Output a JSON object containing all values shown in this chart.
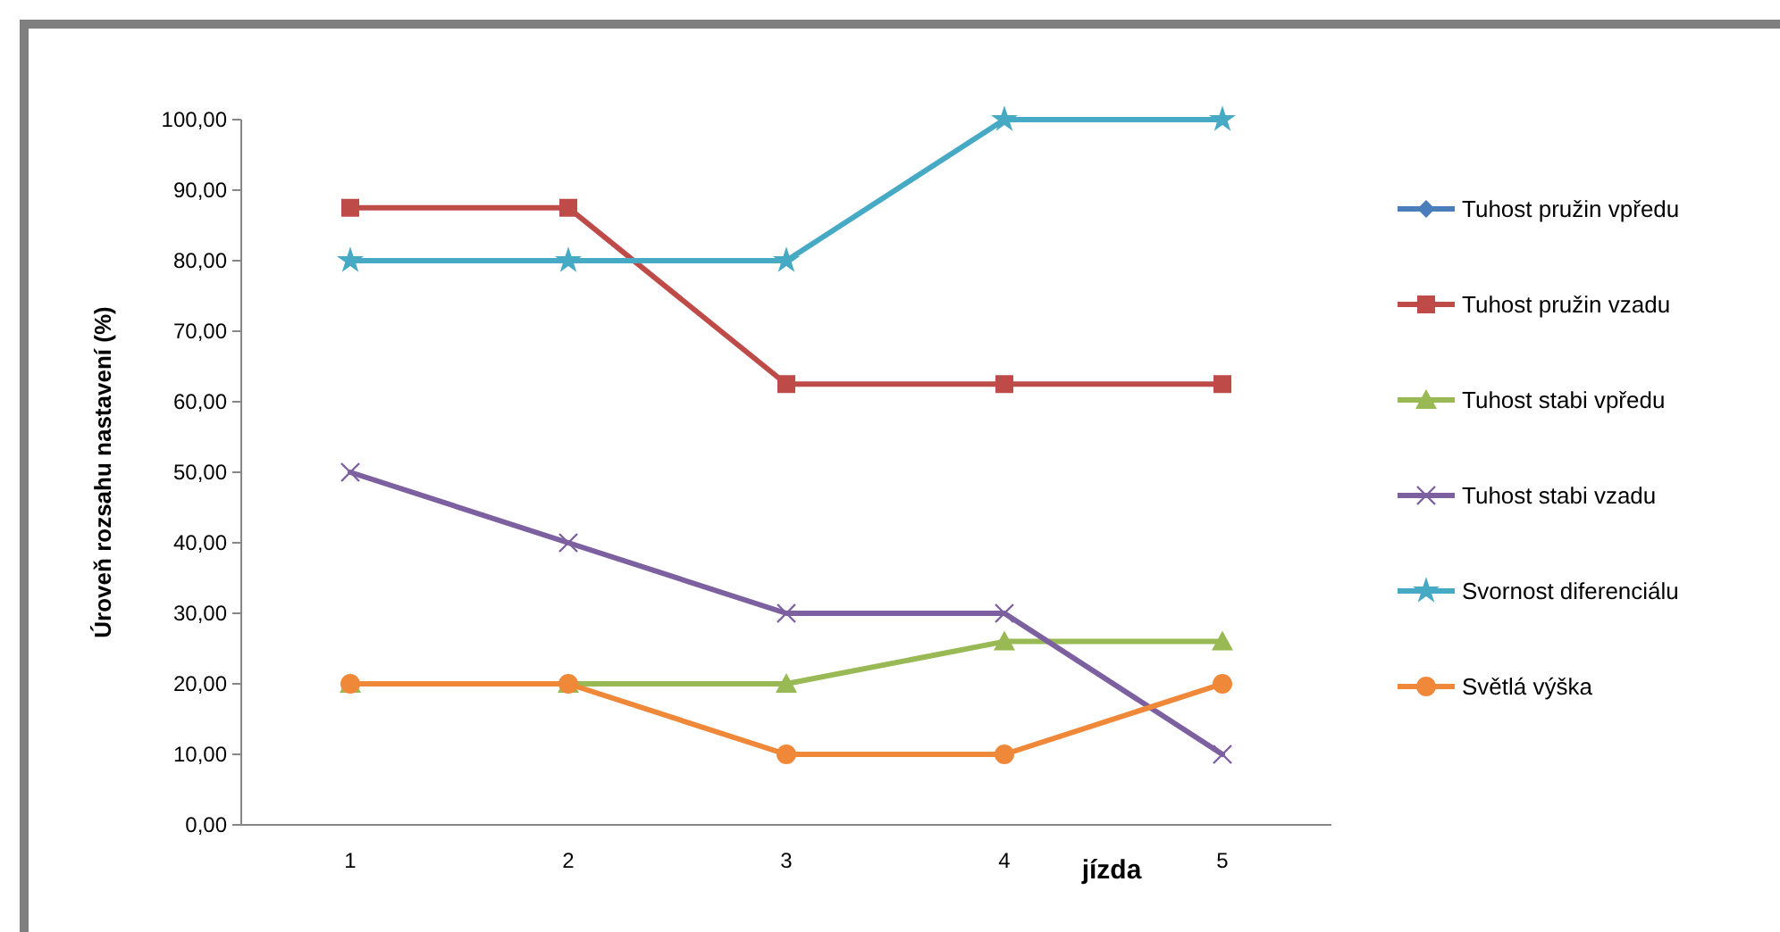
{
  "chart_data": {
    "type": "line",
    "xlabel": "jízda",
    "ylabel": "Úroveň rozsahu nastavení (%)",
    "categories": [
      "1",
      "2",
      "3",
      "4",
      "5"
    ],
    "ylim": [
      0,
      100
    ],
    "yticks": [
      {
        "value": 0,
        "label": "0,00"
      },
      {
        "value": 10,
        "label": "10,00"
      },
      {
        "value": 20,
        "label": "20,00"
      },
      {
        "value": 30,
        "label": "30,00"
      },
      {
        "value": 40,
        "label": "40,00"
      },
      {
        "value": 50,
        "label": "50,00"
      },
      {
        "value": 60,
        "label": "60,00"
      },
      {
        "value": 70,
        "label": "70,00"
      },
      {
        "value": 80,
        "label": "80,00"
      },
      {
        "value": 90,
        "label": "90,00"
      },
      {
        "value": 100,
        "label": "100,00"
      }
    ],
    "grid": false,
    "legend": "right",
    "series": [
      {
        "name": "Tuhost pružin vpředu",
        "color": "#4a7ebb",
        "marker": "diamond",
        "values": [
          null,
          null,
          null,
          null,
          null
        ]
      },
      {
        "name": "Tuhost pružin vzadu",
        "color": "#be4b48",
        "marker": "square",
        "values": [
          87.5,
          87.5,
          62.5,
          62.5,
          62.5
        ]
      },
      {
        "name": "Tuhost stabi vpředu",
        "color": "#98b954",
        "marker": "triangle",
        "values": [
          20,
          20,
          20,
          26,
          26
        ]
      },
      {
        "name": "Tuhost stabi vzadu",
        "color": "#7d60a0",
        "marker": "cross",
        "values": [
          50,
          40,
          30,
          30,
          10
        ]
      },
      {
        "name": "Svornost diferenciálu",
        "color": "#46aac5",
        "marker": "star",
        "values": [
          80,
          80,
          80,
          100,
          100
        ]
      },
      {
        "name": "Světlá výška",
        "color": "#f0883a",
        "marker": "circle",
        "values": [
          20,
          20,
          10,
          10,
          20
        ]
      }
    ]
  }
}
